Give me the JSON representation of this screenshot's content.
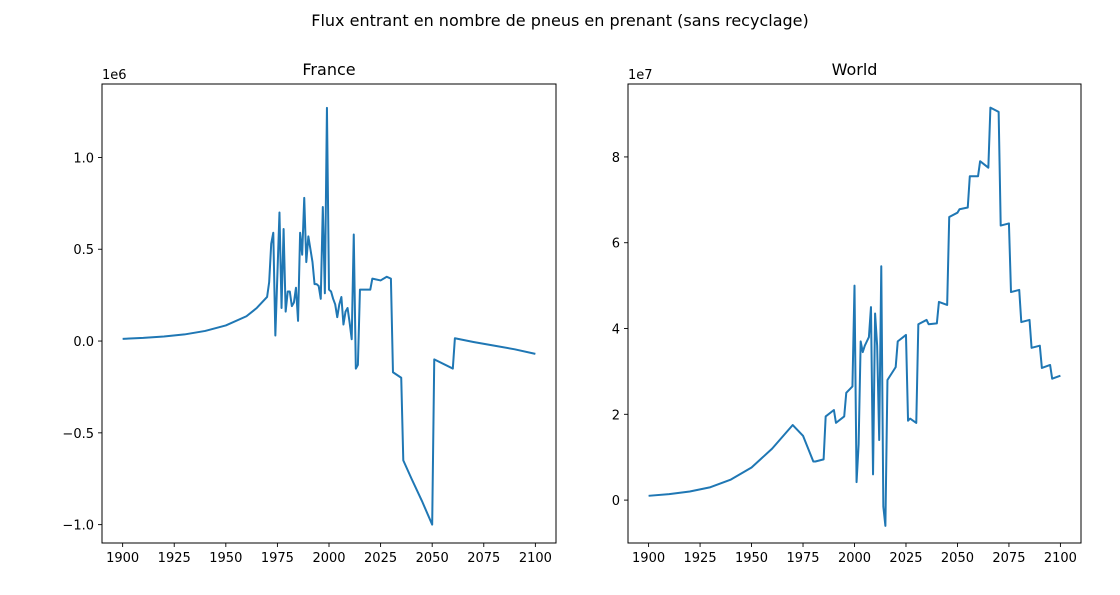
{
  "suptitle": "Flux entrant en nombre de pneus en prenant (sans recyclage)",
  "chart_data": [
    {
      "type": "line",
      "title": "France",
      "xlabel": "",
      "ylabel": "",
      "xlim": [
        1890,
        2110
      ],
      "ylim": [
        -1.1,
        1.4
      ],
      "y_offset_label": "1e6",
      "x_ticks": [
        1900,
        1925,
        1950,
        1975,
        2000,
        2025,
        2050,
        2075,
        2100
      ],
      "y_ticks": [
        -1.0,
        -0.5,
        0.0,
        0.5,
        1.0
      ],
      "y_tick_labels": [
        "−1.0",
        "−0.5",
        "0.0",
        "0.5",
        "1.0"
      ],
      "grid": false,
      "series": [
        {
          "color": "#1f77b4",
          "x": [
            1900,
            1910,
            1920,
            1930,
            1940,
            1950,
            1960,
            1965,
            1970,
            1971,
            1972,
            1973,
            1974,
            1976,
            1977,
            1978,
            1979,
            1980,
            1981,
            1982,
            1983,
            1984,
            1985,
            1986,
            1987,
            1988,
            1989,
            1990,
            1991,
            1992,
            1993,
            1994,
            1995,
            1996,
            1997,
            1998,
            1999,
            2000,
            2001,
            2002,
            2003,
            2004,
            2005,
            2006,
            2007,
            2008,
            2009,
            2010,
            2011,
            2012,
            2013,
            2014,
            2015,
            2016,
            2020,
            2021,
            2025,
            2028,
            2030,
            2031,
            2035,
            2036,
            2040,
            2045,
            2050,
            2051,
            2060,
            2061,
            2070,
            2080,
            2090,
            2100
          ],
          "y": [
            0.012,
            0.017,
            0.025,
            0.036,
            0.055,
            0.085,
            0.135,
            0.18,
            0.24,
            0.32,
            0.53,
            0.59,
            0.03,
            0.7,
            0.18,
            0.61,
            0.16,
            0.27,
            0.27,
            0.19,
            0.21,
            0.29,
            0.11,
            0.59,
            0.47,
            0.78,
            0.43,
            0.57,
            0.5,
            0.43,
            0.31,
            0.31,
            0.3,
            0.23,
            0.73,
            0.26,
            1.27,
            0.28,
            0.27,
            0.23,
            0.2,
            0.13,
            0.2,
            0.24,
            0.09,
            0.16,
            0.18,
            0.1,
            0.01,
            0.58,
            -0.15,
            -0.13,
            0.28,
            0.28,
            0.28,
            0.34,
            0.33,
            0.35,
            0.34,
            -0.17,
            -0.2,
            -0.65,
            -0.75,
            -0.87,
            -1.0,
            -0.1,
            -0.15,
            0.015,
            -0.005,
            -0.025,
            -0.045,
            -0.07
          ]
        }
      ]
    },
    {
      "type": "line",
      "title": "World",
      "xlabel": "",
      "ylabel": "",
      "xlim": [
        1890,
        2110
      ],
      "ylim": [
        -1.0,
        9.7
      ],
      "y_offset_label": "1e7",
      "x_ticks": [
        1900,
        1925,
        1950,
        1975,
        2000,
        2025,
        2050,
        2075,
        2100
      ],
      "y_ticks": [
        0,
        2,
        4,
        6,
        8
      ],
      "y_tick_labels": [
        "0",
        "2",
        "4",
        "6",
        "8"
      ],
      "grid": false,
      "series": [
        {
          "color": "#1f77b4",
          "x": [
            1900,
            1910,
            1920,
            1930,
            1940,
            1950,
            1960,
            1970,
            1975,
            1980,
            1981,
            1985,
            1986,
            1990,
            1991,
            1995,
            1996,
            1999,
            2000,
            2001,
            2002,
            2003,
            2004,
            2005,
            2006,
            2007,
            2008,
            2009,
            2010,
            2011,
            2012,
            2013,
            2014,
            2015,
            2016,
            2020,
            2021,
            2025,
            2026,
            2027,
            2030,
            2031,
            2035,
            2036,
            2040,
            2041,
            2045,
            2046,
            2050,
            2051,
            2055,
            2056,
            2060,
            2061,
            2065,
            2066,
            2070,
            2071,
            2075,
            2076,
            2080,
            2081,
            2085,
            2086,
            2090,
            2091,
            2095,
            2096,
            2100
          ],
          "y": [
            0.1,
            0.14,
            0.2,
            0.3,
            0.48,
            0.76,
            1.2,
            1.75,
            1.5,
            0.9,
            0.9,
            0.95,
            1.95,
            2.1,
            1.8,
            1.95,
            2.5,
            2.65,
            5.0,
            0.42,
            1.3,
            3.7,
            3.45,
            3.6,
            3.7,
            3.8,
            4.5,
            0.6,
            4.35,
            3.6,
            1.4,
            5.45,
            -0.15,
            -0.6,
            2.8,
            3.1,
            3.7,
            3.85,
            1.85,
            1.9,
            1.8,
            4.1,
            4.2,
            4.1,
            4.12,
            4.62,
            4.55,
            6.6,
            6.7,
            6.78,
            6.82,
            7.55,
            7.55,
            7.9,
            7.75,
            9.15,
            9.05,
            6.4,
            6.45,
            4.85,
            4.9,
            4.15,
            4.2,
            3.55,
            3.6,
            3.08,
            3.15,
            2.83,
            2.9
          ]
        }
      ]
    }
  ]
}
